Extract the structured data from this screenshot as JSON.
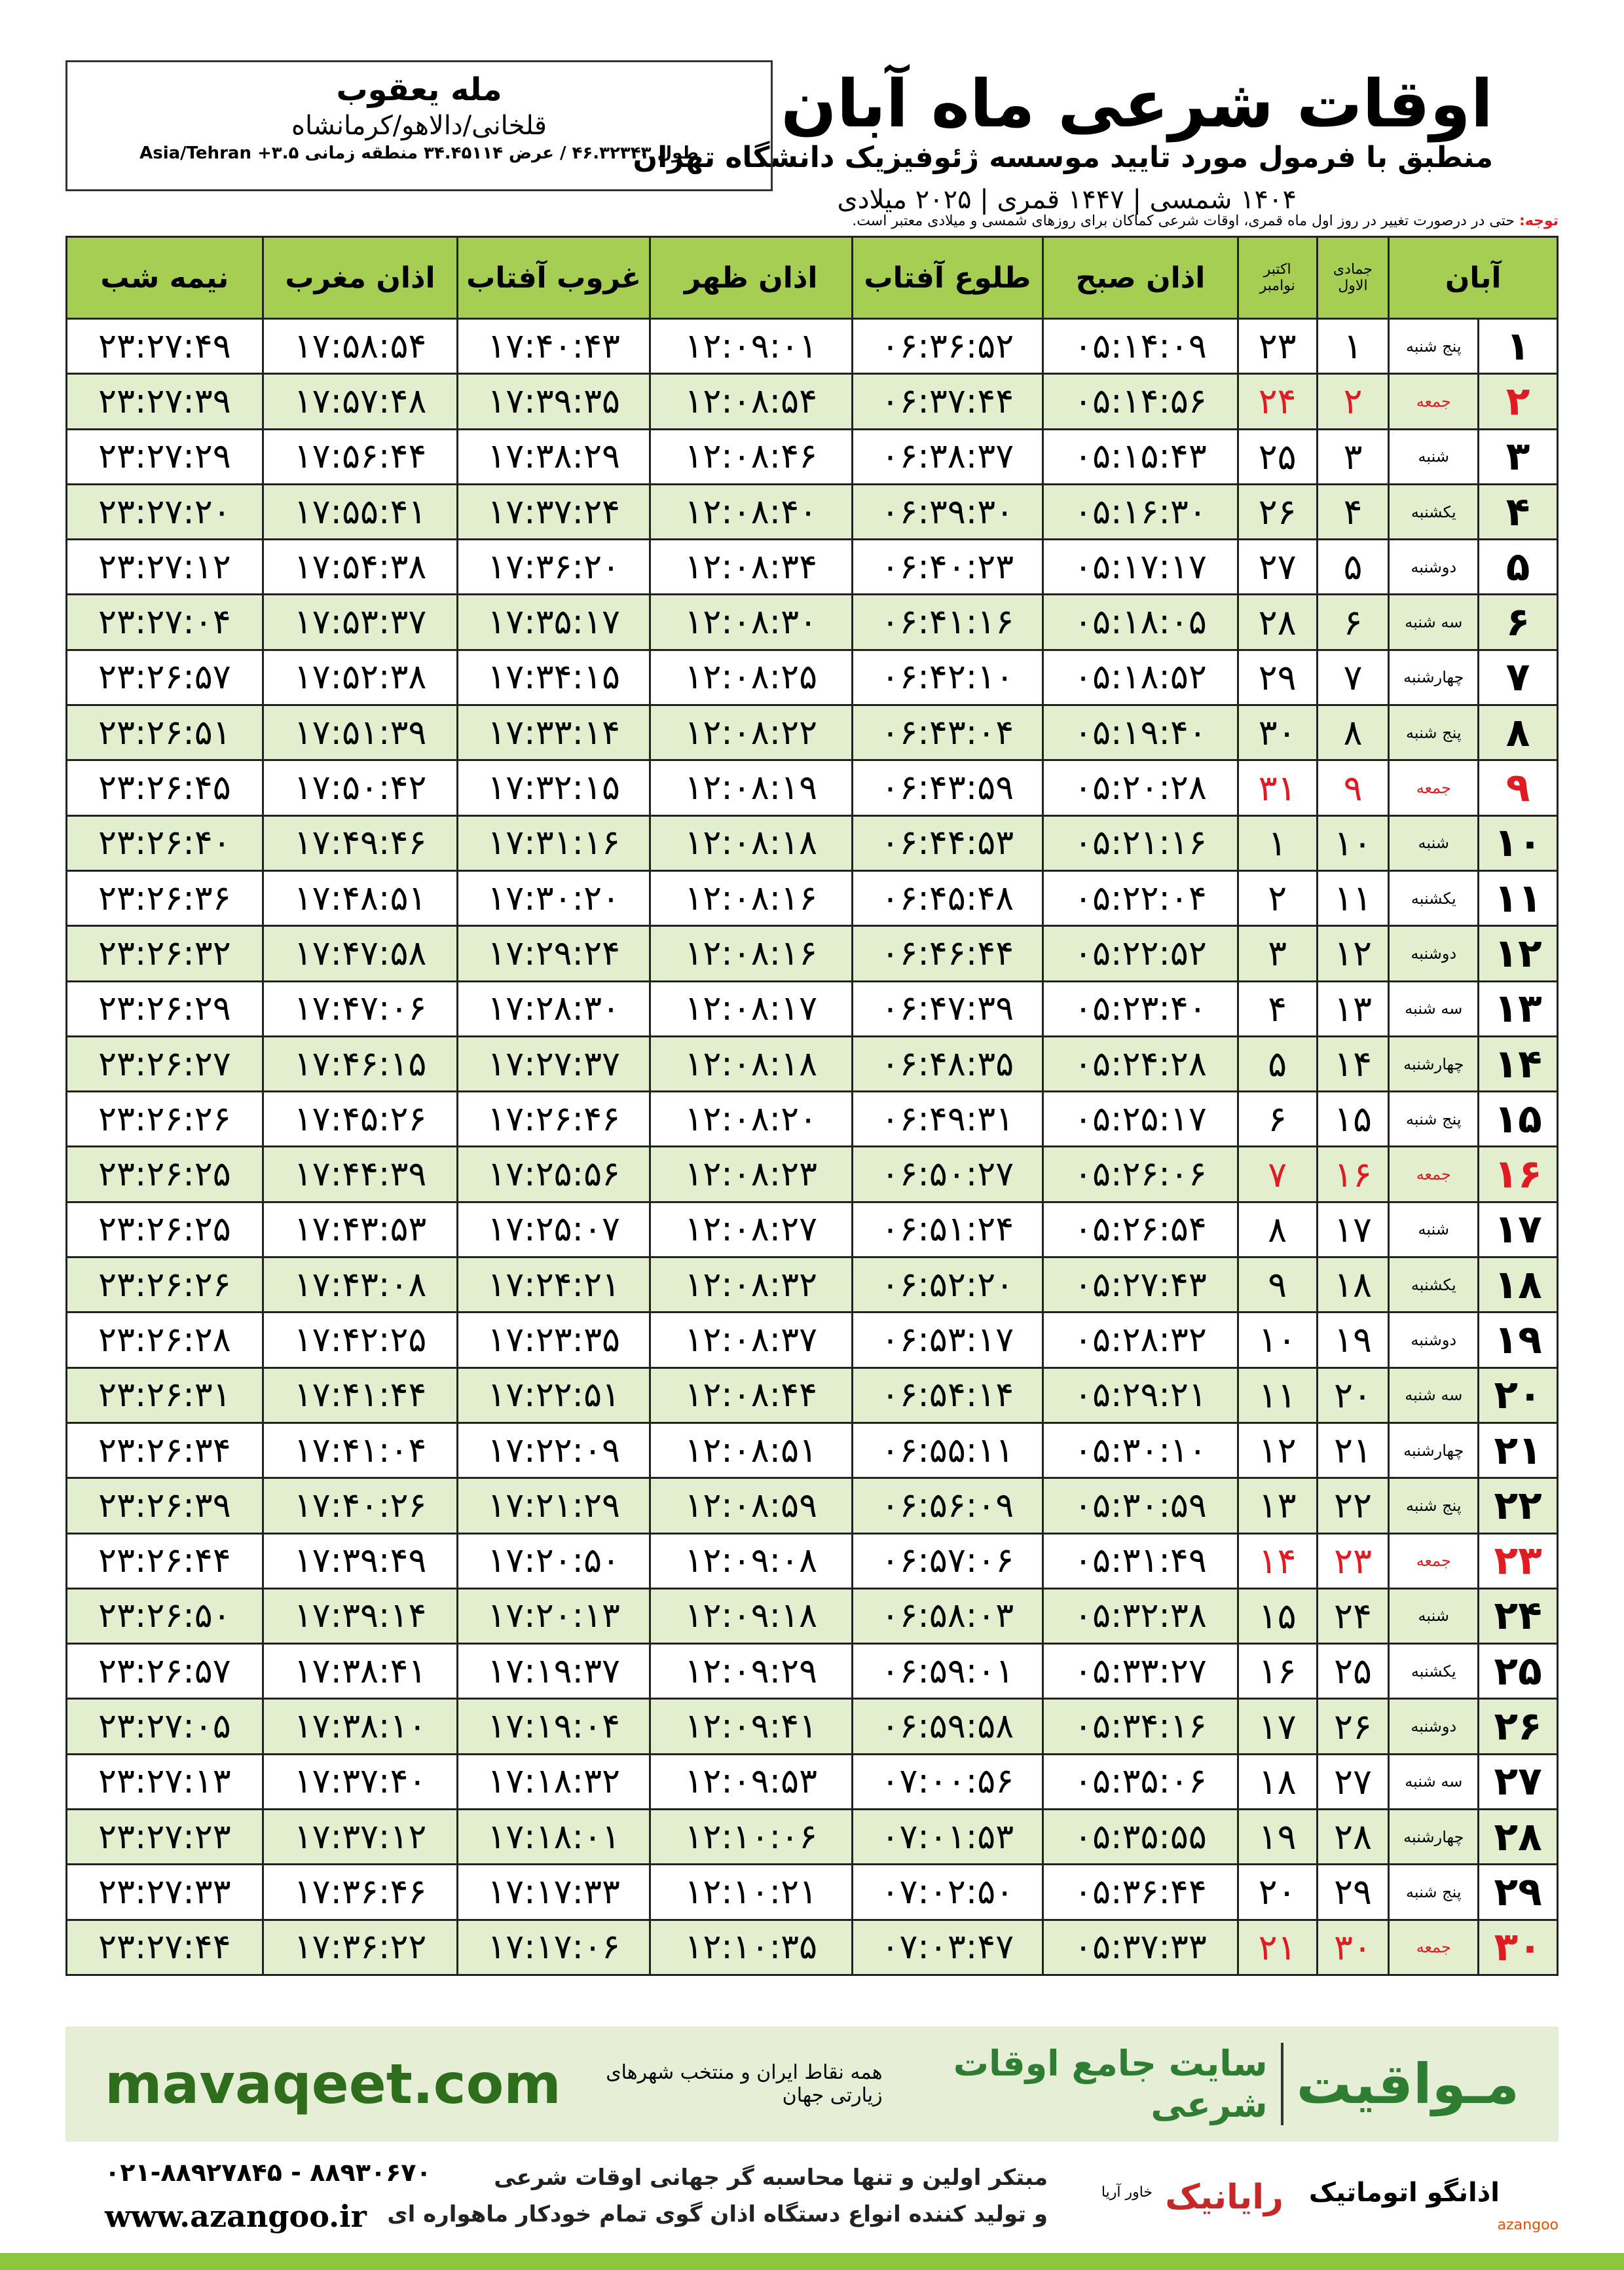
{
  "header": {
    "title": "اوقات شرعی ماه آبان",
    "subtitle": "منطبق با فرمول مورد تایید موسسه ژئوفیزیک دانشگاه تهران",
    "dates": "۱۴۰۴ شمسی | ۱۴۴۷ قمری | ۲۰۲۵ میلادی"
  },
  "location": {
    "name": "مله یعقوب",
    "region": "قلخانی/دالاهو/کرمانشاه",
    "coords": "طول ۴۶.۳۲۳۴۳ / عرض ۳۴.۴۵۱۱۴ منطقه زمانی ۳.۵+ Asia/Tehran"
  },
  "note": {
    "label": "توجه:",
    "text": "حتی در درصورت تغییر در روز اول ماه قمری، اوقات شرعی کماکان برای روزهای شمسی و میلادی معتبر است."
  },
  "table": {
    "headers": {
      "month": "آبان",
      "hijri": "جمادی الاول",
      "gregorian": [
        "اکتبر",
        "نوامبر"
      ],
      "times": [
        "اذان صبح",
        "طلوع آفتاب",
        "اذان ظهر",
        "غروب آفتاب",
        "اذان مغرب",
        "نیمه شب"
      ]
    },
    "rows": [
      {
        "cells": [
          "۱",
          "پنج شنبه",
          "۱",
          "۲۳",
          "۰۵:۱۴:۰۹",
          "۰۶:۳۶:۵۲",
          "۱۲:۰۹:۰۱",
          "۱۷:۴۰:۴۳",
          "۱۷:۵۸:۵۴",
          "۲۳:۲۷:۴۹"
        ]
      },
      {
        "cells": [
          "۲",
          "جمعه",
          "۲",
          "۲۴",
          "۰۵:۱۴:۵۶",
          "۰۶:۳۷:۴۴",
          "۱۲:۰۸:۵۴",
          "۱۷:۳۹:۳۵",
          "۱۷:۵۷:۴۸",
          "۲۳:۲۷:۳۹"
        ],
        "color": "#e01b22"
      },
      {
        "cells": [
          "۳",
          "شنبه",
          "۳",
          "۲۵",
          "۰۵:۱۵:۴۳",
          "۰۶:۳۸:۳۷",
          "۱۲:۰۸:۴۶",
          "۱۷:۳۸:۲۹",
          "۱۷:۵۶:۴۴",
          "۲۳:۲۷:۲۹"
        ]
      },
      {
        "cells": [
          "۴",
          "یکشنبه",
          "۴",
          "۲۶",
          "۰۵:۱۶:۳۰",
          "۰۶:۳۹:۳۰",
          "۱۲:۰۸:۴۰",
          "۱۷:۳۷:۲۴",
          "۱۷:۵۵:۴۱",
          "۲۳:۲۷:۲۰"
        ]
      },
      {
        "cells": [
          "۵",
          "دوشنبه",
          "۵",
          "۲۷",
          "۰۵:۱۷:۱۷",
          "۰۶:۴۰:۲۳",
          "۱۲:۰۸:۳۴",
          "۱۷:۳۶:۲۰",
          "۱۷:۵۴:۳۸",
          "۲۳:۲۷:۱۲"
        ]
      },
      {
        "cells": [
          "۶",
          "سه شنبه",
          "۶",
          "۲۸",
          "۰۵:۱۸:۰۵",
          "۰۶:۴۱:۱۶",
          "۱۲:۰۸:۳۰",
          "۱۷:۳۵:۱۷",
          "۱۷:۵۳:۳۷",
          "۲۳:۲۷:۰۴"
        ]
      },
      {
        "cells": [
          "۷",
          "چهارشنبه",
          "۷",
          "۲۹",
          "۰۵:۱۸:۵۲",
          "۰۶:۴۲:۱۰",
          "۱۲:۰۸:۲۵",
          "۱۷:۳۴:۱۵",
          "۱۷:۵۲:۳۸",
          "۲۳:۲۶:۵۷"
        ]
      },
      {
        "cells": [
          "۸",
          "پنج شنبه",
          "۸",
          "۳۰",
          "۰۵:۱۹:۴۰",
          "۰۶:۴۳:۰۴",
          "۱۲:۰۸:۲۲",
          "۱۷:۳۳:۱۴",
          "۱۷:۵۱:۳۹",
          "۲۳:۲۶:۵۱"
        ]
      },
      {
        "cells": [
          "۹",
          "جمعه",
          "۹",
          "۳۱",
          "۰۵:۲۰:۲۸",
          "۰۶:۴۳:۵۹",
          "۱۲:۰۸:۱۹",
          "۱۷:۳۲:۱۵",
          "۱۷:۵۰:۴۲",
          "۲۳:۲۶:۴۵"
        ],
        "color": "#e01b22"
      },
      {
        "cells": [
          "۱۰",
          "شنبه",
          "۱۰",
          "۱",
          "۰۵:۲۱:۱۶",
          "۰۶:۴۴:۵۳",
          "۱۲:۰۸:۱۸",
          "۱۷:۳۱:۱۶",
          "۱۷:۴۹:۴۶",
          "۲۳:۲۶:۴۰"
        ]
      },
      {
        "cells": [
          "۱۱",
          "یکشنبه",
          "۱۱",
          "۲",
          "۰۵:۲۲:۰۴",
          "۰۶:۴۵:۴۸",
          "۱۲:۰۸:۱۶",
          "۱۷:۳۰:۲۰",
          "۱۷:۴۸:۵۱",
          "۲۳:۲۶:۳۶"
        ]
      },
      {
        "cells": [
          "۱۲",
          "دوشنبه",
          "۱۲",
          "۳",
          "۰۵:۲۲:۵۲",
          "۰۶:۴۶:۴۴",
          "۱۲:۰۸:۱۶",
          "۱۷:۲۹:۲۴",
          "۱۷:۴۷:۵۸",
          "۲۳:۲۶:۳۲"
        ]
      },
      {
        "cells": [
          "۱۳",
          "سه شنبه",
          "۱۳",
          "۴",
          "۰۵:۲۳:۴۰",
          "۰۶:۴۷:۳۹",
          "۱۲:۰۸:۱۷",
          "۱۷:۲۸:۳۰",
          "۱۷:۴۷:۰۶",
          "۲۳:۲۶:۲۹"
        ]
      },
      {
        "cells": [
          "۱۴",
          "چهارشنبه",
          "۱۴",
          "۵",
          "۰۵:۲۴:۲۸",
          "۰۶:۴۸:۳۵",
          "۱۲:۰۸:۱۸",
          "۱۷:۲۷:۳۷",
          "۱۷:۴۶:۱۵",
          "۲۳:۲۶:۲۷"
        ]
      },
      {
        "cells": [
          "۱۵",
          "پنج شنبه",
          "۱۵",
          "۶",
          "۰۵:۲۵:۱۷",
          "۰۶:۴۹:۳۱",
          "۱۲:۰۸:۲۰",
          "۱۷:۲۶:۴۶",
          "۱۷:۴۵:۲۶",
          "۲۳:۲۶:۲۶"
        ]
      },
      {
        "cells": [
          "۱۶",
          "جمعه",
          "۱۶",
          "۷",
          "۰۵:۲۶:۰۶",
          "۰۶:۵۰:۲۷",
          "۱۲:۰۸:۲۳",
          "۱۷:۲۵:۵۶",
          "۱۷:۴۴:۳۹",
          "۲۳:۲۶:۲۵"
        ],
        "color": "#e01b22"
      },
      {
        "cells": [
          "۱۷",
          "شنبه",
          "۱۷",
          "۸",
          "۰۵:۲۶:۵۴",
          "۰۶:۵۱:۲۴",
          "۱۲:۰۸:۲۷",
          "۱۷:۲۵:۰۷",
          "۱۷:۴۳:۵۳",
          "۲۳:۲۶:۲۵"
        ]
      },
      {
        "cells": [
          "۱۸",
          "یکشنبه",
          "۱۸",
          "۹",
          "۰۵:۲۷:۴۳",
          "۰۶:۵۲:۲۰",
          "۱۲:۰۸:۳۲",
          "۱۷:۲۴:۲۱",
          "۱۷:۴۳:۰۸",
          "۲۳:۲۶:۲۶"
        ]
      },
      {
        "cells": [
          "۱۹",
          "دوشنبه",
          "۱۹",
          "۱۰",
          "۰۵:۲۸:۳۲",
          "۰۶:۵۳:۱۷",
          "۱۲:۰۸:۳۷",
          "۱۷:۲۳:۳۵",
          "۱۷:۴۲:۲۵",
          "۲۳:۲۶:۲۸"
        ]
      },
      {
        "cells": [
          "۲۰",
          "سه شنبه",
          "۲۰",
          "۱۱",
          "۰۵:۲۹:۲۱",
          "۰۶:۵۴:۱۴",
          "۱۲:۰۸:۴۴",
          "۱۷:۲۲:۵۱",
          "۱۷:۴۱:۴۴",
          "۲۳:۲۶:۳۱"
        ]
      },
      {
        "cells": [
          "۲۱",
          "چهارشنبه",
          "۲۱",
          "۱۲",
          "۰۵:۳۰:۱۰",
          "۰۶:۵۵:۱۱",
          "۱۲:۰۸:۵۱",
          "۱۷:۲۲:۰۹",
          "۱۷:۴۱:۰۴",
          "۲۳:۲۶:۳۴"
        ]
      },
      {
        "cells": [
          "۲۲",
          "پنج شنبه",
          "۲۲",
          "۱۳",
          "۰۵:۳۰:۵۹",
          "۰۶:۵۶:۰۹",
          "۱۲:۰۸:۵۹",
          "۱۷:۲۱:۲۹",
          "۱۷:۴۰:۲۶",
          "۲۳:۲۶:۳۹"
        ]
      },
      {
        "cells": [
          "۲۳",
          "جمعه",
          "۲۳",
          "۱۴",
          "۰۵:۳۱:۴۹",
          "۰۶:۵۷:۰۶",
          "۱۲:۰۹:۰۸",
          "۱۷:۲۰:۵۰",
          "۱۷:۳۹:۴۹",
          "۲۳:۲۶:۴۴"
        ],
        "color": "#e01b22"
      },
      {
        "cells": [
          "۲۴",
          "شنبه",
          "۲۴",
          "۱۵",
          "۰۵:۳۲:۳۸",
          "۰۶:۵۸:۰۳",
          "۱۲:۰۹:۱۸",
          "۱۷:۲۰:۱۳",
          "۱۷:۳۹:۱۴",
          "۲۳:۲۶:۵۰"
        ]
      },
      {
        "cells": [
          "۲۵",
          "یکشنبه",
          "۲۵",
          "۱۶",
          "۰۵:۳۳:۲۷",
          "۰۶:۵۹:۰۱",
          "۱۲:۰۹:۲۹",
          "۱۷:۱۹:۳۷",
          "۱۷:۳۸:۴۱",
          "۲۳:۲۶:۵۷"
        ]
      },
      {
        "cells": [
          "۲۶",
          "دوشنبه",
          "۲۶",
          "۱۷",
          "۰۵:۳۴:۱۶",
          "۰۶:۵۹:۵۸",
          "۱۲:۰۹:۴۱",
          "۱۷:۱۹:۰۴",
          "۱۷:۳۸:۱۰",
          "۲۳:۲۷:۰۵"
        ]
      },
      {
        "cells": [
          "۲۷",
          "سه شنبه",
          "۲۷",
          "۱۸",
          "۰۵:۳۵:۰۶",
          "۰۷:۰۰:۵۶",
          "۱۲:۰۹:۵۳",
          "۱۷:۱۸:۳۲",
          "۱۷:۳۷:۴۰",
          "۲۳:۲۷:۱۳"
        ]
      },
      {
        "cells": [
          "۲۸",
          "چهارشنبه",
          "۲۸",
          "۱۹",
          "۰۵:۳۵:۵۵",
          "۰۷:۰۱:۵۳",
          "۱۲:۱۰:۰۶",
          "۱۷:۱۸:۰۱",
          "۱۷:۳۷:۱۲",
          "۲۳:۲۷:۲۳"
        ]
      },
      {
        "cells": [
          "۲۹",
          "پنج شنبه",
          "۲۹",
          "۲۰",
          "۰۵:۳۶:۴۴",
          "۰۷:۰۲:۵۰",
          "۱۲:۱۰:۲۱",
          "۱۷:۱۷:۳۳",
          "۱۷:۳۶:۴۶",
          "۲۳:۲۷:۳۳"
        ]
      },
      {
        "cells": [
          "۳۰",
          "جمعه",
          "۳۰",
          "۲۱",
          "۰۵:۳۷:۳۳",
          "۰۷:۰۳:۴۷",
          "۱۲:۱۰:۳۵",
          "۱۷:۱۷:۰۶",
          "۱۷:۳۶:۲۲",
          "۲۳:۲۷:۴۴"
        ],
        "color": "#e01b22"
      }
    ]
  },
  "banner": {
    "brand": "مـواقیت",
    "site": "سایت جامع اوقات شرعی",
    "tagline": "همه نقاط ایران و منتخب شهرهای زیارتی جهان",
    "url": "mavaqeet.com"
  },
  "footer": {
    "phone": "۰۲۱-۸۸۹۲۷۸۴۵ - ۸۸۹۳۰۶۷۰",
    "web": "www.azangoo.ir",
    "line1": "مبتکر اولین و تنها محاسبه گر جهانی اوقات شرعی",
    "line2": "و تولید کننده انواع دستگاه اذان گوی تمام خودکار ماهواره ای",
    "logo1": "رایانیک",
    "logo2": "خاور آریا",
    "logo3": "اذانگو اتوماتیک",
    "logo4": "azangoo"
  }
}
